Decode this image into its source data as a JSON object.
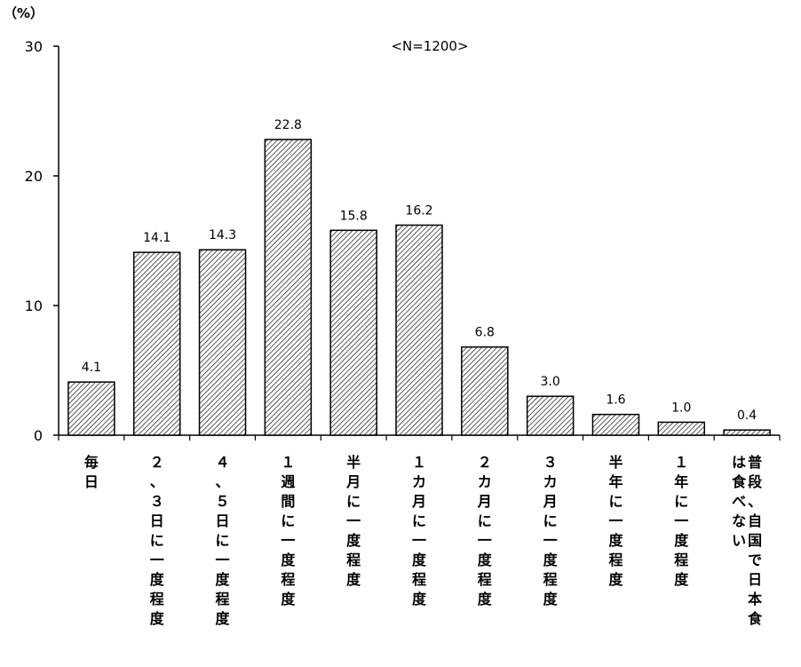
{
  "chart_data": {
    "type": "bar",
    "unit_label": "（%）",
    "annotation": "<N=1200>",
    "categories": [
      "毎日",
      "２、３日に一度程度",
      "４、５日に一度程度",
      "１週間に一度程度",
      "半月に一度程度",
      "１カ月に一度程度",
      "２カ月に一度程度",
      "３カ月に一度程度",
      "半年に一度程度",
      "１年に一度程度",
      "普段、自国で日本食は食べない"
    ],
    "values": [
      4.1,
      14.1,
      14.3,
      22.8,
      15.8,
      16.2,
      6.8,
      3.0,
      1.6,
      1.0,
      0.4
    ],
    "value_labels": [
      "4.1",
      "14.1",
      "14.3",
      "22.8",
      "15.8",
      "16.2",
      "6.8",
      "3.0",
      "1.6",
      "1.0",
      "0.4"
    ],
    "ylim": [
      0,
      30
    ],
    "yticks": [
      0,
      10,
      20,
      30
    ],
    "ytick_labels": [
      "0",
      "10",
      "20",
      "30"
    ],
    "bar_fill": "hatched-diagonal",
    "grid": false
  }
}
